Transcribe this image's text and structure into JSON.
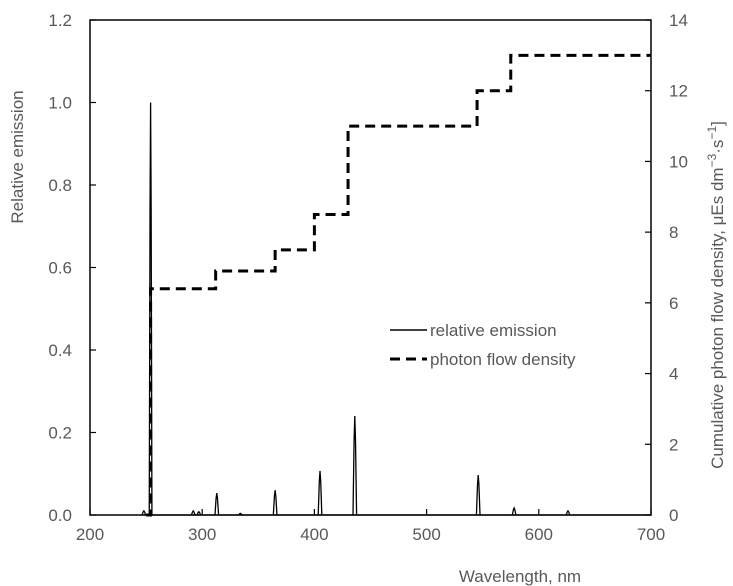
{
  "chart_data": {
    "type": "line",
    "xlabel": "Wavelength, nm",
    "ylabel": "Relative emission",
    "y2label": "Cumulative photon flow density,  μEs dm",
    "y2label_unit_exp1": "−3",
    "y2label_mid": "·s",
    "y2label_unit_exp2": "−1",
    "y2label_end": "]",
    "xlim": [
      200,
      700
    ],
    "ylim": [
      0,
      1.2
    ],
    "y2lim": [
      0,
      14
    ],
    "x_ticks": [
      "200",
      "300",
      "400",
      "500",
      "600",
      "700"
    ],
    "y_ticks": [
      "0.0",
      "0.2",
      "0.4",
      "0.6",
      "0.8",
      "1.0",
      "1.2"
    ],
    "y2_ticks": [
      "0",
      "2",
      "4",
      "6",
      "8",
      "10",
      "12",
      "14"
    ],
    "grid": false,
    "legend_position": "center-right",
    "series": [
      {
        "name": "relative emission",
        "axis": "left",
        "style": "solid",
        "color": "#000000",
        "baseline": [
          [
            245,
            0
          ],
          [
            700,
            0
          ]
        ],
        "peaks": [
          {
            "x": 248,
            "y": 0.01
          },
          {
            "x": 254,
            "y": 1.0
          },
          {
            "x": 292,
            "y": 0.01
          },
          {
            "x": 297,
            "y": 0.008
          },
          {
            "x": 313,
            "y": 0.053
          },
          {
            "x": 334,
            "y": 0.004
          },
          {
            "x": 365,
            "y": 0.06
          },
          {
            "x": 405,
            "y": 0.107
          },
          {
            "x": 436,
            "y": 0.24
          },
          {
            "x": 546,
            "y": 0.097
          },
          {
            "x": 578,
            "y": 0.017
          },
          {
            "x": 626,
            "y": 0.01
          }
        ]
      },
      {
        "name": "photon flow density",
        "axis": "right",
        "style": "dashed",
        "color": "#000000",
        "points": [
          [
            250,
            0
          ],
          [
            254,
            0
          ],
          [
            254,
            6.4
          ],
          [
            312,
            6.4
          ],
          [
            312,
            6.9
          ],
          [
            365,
            6.9
          ],
          [
            365,
            7.5
          ],
          [
            400,
            7.5
          ],
          [
            400,
            8.5
          ],
          [
            430,
            8.5
          ],
          [
            430,
            11
          ],
          [
            545,
            11
          ],
          [
            545,
            12
          ],
          [
            575,
            12
          ],
          [
            575,
            13
          ],
          [
            700,
            13
          ]
        ]
      }
    ]
  }
}
